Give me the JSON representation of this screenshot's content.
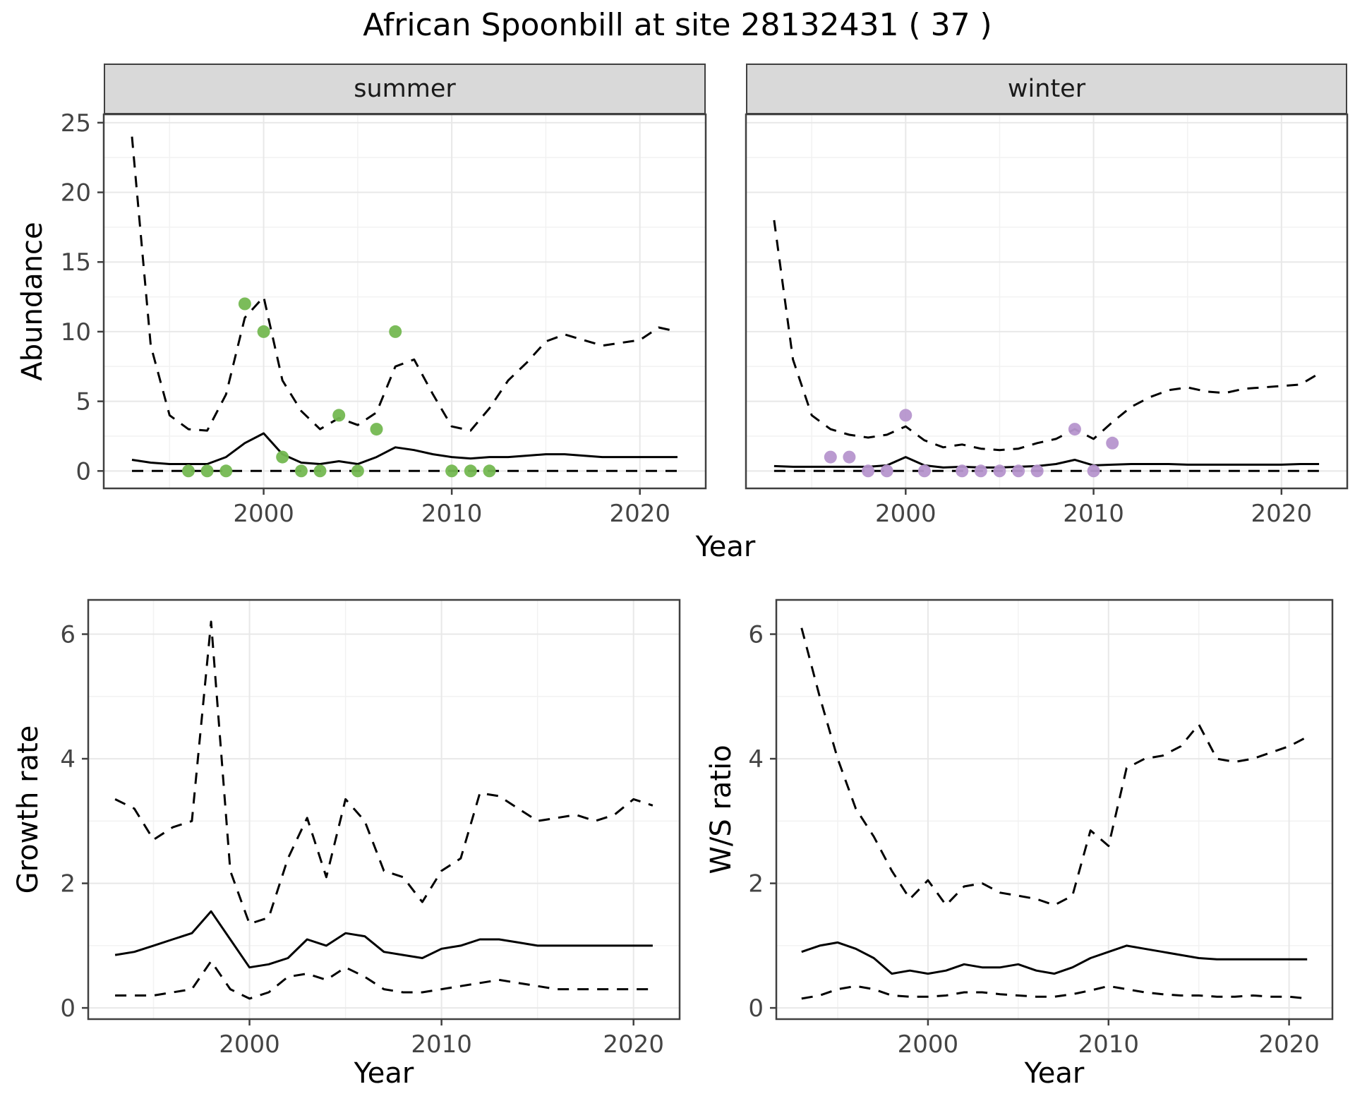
{
  "title": "African Spoonbill at site 28132431 ( 37 )",
  "colors": {
    "summer_points": "#74b851",
    "winter_points": "#b695ce",
    "line": "#000000",
    "grid_major": "#e8e8e8",
    "grid_minor": "#f2f2f2",
    "strip_bg": "#d9d9d9",
    "border": "#404040",
    "tick_text": "#444444"
  },
  "chart_data": [
    {
      "id": "abundance-summer",
      "type": "line",
      "facet": "summer",
      "ylabel": "Abundance",
      "xlabel": "Year",
      "xticks": [
        2000,
        2010,
        2020
      ],
      "yticks": [
        0,
        5,
        10,
        15,
        20,
        25
      ],
      "xdomain": [
        1991.5,
        2023.5
      ],
      "ydomain": [
        -1.25,
        25.6
      ],
      "ylim": [
        0,
        25
      ],
      "x": [
        1993,
        1994,
        1995,
        1996,
        1997,
        1998,
        1999,
        2000,
        2001,
        2002,
        2003,
        2004,
        2005,
        2006,
        2007,
        2008,
        2009,
        2010,
        2011,
        2012,
        2013,
        2014,
        2015,
        2016,
        2017,
        2018,
        2019,
        2020,
        2021,
        2022
      ],
      "series": [
        {
          "name": "upper-ci",
          "style": "dashed",
          "values": [
            24,
            9,
            4,
            3,
            2.9,
            5.5,
            11,
            12.5,
            6.5,
            4.3,
            3,
            3.8,
            3.3,
            4.2,
            7.5,
            8,
            5.5,
            3.2,
            2.9,
            4.5,
            6.5,
            7.8,
            9.3,
            9.8,
            9.4,
            9,
            9.2,
            9.4,
            10.3,
            10
          ]
        },
        {
          "name": "median",
          "style": "solid",
          "values": [
            0.8,
            0.6,
            0.5,
            0.5,
            0.5,
            1.0,
            2.0,
            2.7,
            1.2,
            0.6,
            0.5,
            0.7,
            0.5,
            1.0,
            1.7,
            1.5,
            1.2,
            1.0,
            0.9,
            1.0,
            1.0,
            1.1,
            1.2,
            1.2,
            1.1,
            1.0,
            1.0,
            1.0,
            1.0,
            1.0
          ]
        },
        {
          "name": "lower-ci",
          "style": "dashed",
          "values": [
            0,
            0,
            0,
            0,
            0,
            0,
            0,
            0,
            0,
            0,
            0,
            0,
            0,
            0,
            0,
            0,
            0,
            0,
            0,
            0,
            0,
            0,
            0,
            0,
            0,
            0,
            0,
            0,
            0,
            0
          ]
        }
      ],
      "points": {
        "name": "observed-counts-summer",
        "color": "#74b851",
        "x": [
          1996,
          1997,
          1998,
          1999,
          2000,
          2001,
          2002,
          2003,
          2004,
          2005,
          2006,
          2007,
          2010,
          2011,
          2012
        ],
        "y": [
          0,
          0,
          0,
          12,
          10,
          1,
          0,
          0,
          4,
          0,
          3,
          10,
          0,
          0,
          0
        ]
      }
    },
    {
      "id": "abundance-winter",
      "type": "line",
      "facet": "winter",
      "ylabel": "Abundance",
      "xlabel": "Year",
      "xticks": [
        2000,
        2010,
        2020
      ],
      "yticks": [
        0,
        5,
        10,
        15,
        20,
        25
      ],
      "xdomain": [
        1991.5,
        2023.5
      ],
      "ydomain": [
        -1.25,
        25.6
      ],
      "ylim": [
        0,
        25
      ],
      "x": [
        1993,
        1994,
        1995,
        1996,
        1997,
        1998,
        1999,
        2000,
        2001,
        2002,
        2003,
        2004,
        2005,
        2006,
        2007,
        2008,
        2009,
        2010,
        2011,
        2012,
        2013,
        2014,
        2015,
        2016,
        2017,
        2018,
        2019,
        2020,
        2021,
        2022
      ],
      "series": [
        {
          "name": "upper-ci",
          "style": "dashed",
          "values": [
            18,
            8,
            4,
            3,
            2.6,
            2.4,
            2.6,
            3.2,
            2.2,
            1.7,
            1.9,
            1.6,
            1.5,
            1.6,
            2.0,
            2.3,
            3.0,
            2.3,
            3.5,
            4.6,
            5.3,
            5.8,
            6.0,
            5.7,
            5.6,
            5.9,
            6.0,
            6.1,
            6.2,
            7.0
          ]
        },
        {
          "name": "median",
          "style": "solid",
          "values": [
            0.35,
            0.3,
            0.3,
            0.3,
            0.3,
            0.3,
            0.4,
            1.0,
            0.4,
            0.25,
            0.3,
            0.25,
            0.25,
            0.3,
            0.35,
            0.5,
            0.8,
            0.4,
            0.45,
            0.5,
            0.5,
            0.5,
            0.45,
            0.45,
            0.45,
            0.45,
            0.45,
            0.45,
            0.5,
            0.5
          ]
        },
        {
          "name": "lower-ci",
          "style": "dashed",
          "values": [
            0,
            0,
            0,
            0,
            0,
            0,
            0,
            0,
            0,
            0,
            0,
            0,
            0,
            0,
            0,
            0,
            0,
            0,
            0,
            0,
            0,
            0,
            0,
            0,
            0,
            0,
            0,
            0,
            0,
            0
          ]
        }
      ],
      "points": {
        "name": "observed-counts-winter",
        "color": "#b695ce",
        "x": [
          1996,
          1997,
          1998,
          1999,
          2000,
          2001,
          2003,
          2004,
          2005,
          2006,
          2007,
          2009,
          2010,
          2011
        ],
        "y": [
          1,
          1,
          0,
          0,
          4,
          0,
          0,
          0,
          0,
          0,
          0,
          3,
          0,
          2
        ]
      }
    },
    {
      "id": "growth-rate",
      "type": "line",
      "facet": null,
      "ylabel": "Growth rate",
      "xlabel": "Year",
      "xticks": [
        2000,
        2010,
        2020
      ],
      "yticks": [
        0,
        2,
        4,
        6
      ],
      "xdomain": [
        1991.6,
        2022.4
      ],
      "ydomain": [
        -0.18,
        6.55
      ],
      "ylim": [
        0,
        6
      ],
      "x": [
        1993,
        1994,
        1995,
        1996,
        1997,
        1998,
        1999,
        2000,
        2001,
        2002,
        2003,
        2004,
        2005,
        2006,
        2007,
        2008,
        2009,
        2010,
        2011,
        2012,
        2013,
        2014,
        2015,
        2016,
        2017,
        2018,
        2019,
        2020,
        2021
      ],
      "series": [
        {
          "name": "upper-ci",
          "style": "dashed",
          "values": [
            3.35,
            3.2,
            2.7,
            2.9,
            3.0,
            6.2,
            2.2,
            1.35,
            1.45,
            2.4,
            3.05,
            2.1,
            3.35,
            3.0,
            2.2,
            2.1,
            1.7,
            2.2,
            2.4,
            3.45,
            3.4,
            3.2,
            3.0,
            3.05,
            3.1,
            3.0,
            3.1,
            3.35,
            3.25
          ]
        },
        {
          "name": "median",
          "style": "solid",
          "values": [
            0.85,
            0.9,
            1.0,
            1.1,
            1.2,
            1.55,
            1.1,
            0.65,
            0.7,
            0.8,
            1.1,
            1.0,
            1.2,
            1.15,
            0.9,
            0.85,
            0.8,
            0.95,
            1.0,
            1.1,
            1.1,
            1.05,
            1.0,
            1.0,
            1.0,
            1.0,
            1.0,
            1.0,
            1.0
          ]
        },
        {
          "name": "lower-ci",
          "style": "dashed",
          "values": [
            0.2,
            0.2,
            0.2,
            0.25,
            0.3,
            0.75,
            0.3,
            0.15,
            0.25,
            0.5,
            0.55,
            0.45,
            0.65,
            0.5,
            0.3,
            0.25,
            0.25,
            0.3,
            0.35,
            0.4,
            0.45,
            0.4,
            0.35,
            0.3,
            0.3,
            0.3,
            0.3,
            0.3,
            0.3
          ]
        }
      ],
      "points": null
    },
    {
      "id": "ws-ratio",
      "type": "line",
      "facet": null,
      "ylabel": "W/S ratio",
      "xlabel": "Year",
      "xticks": [
        2000,
        2010,
        2020
      ],
      "yticks": [
        0,
        2,
        4,
        6
      ],
      "xdomain": [
        1991.6,
        2022.4
      ],
      "ydomain": [
        -0.18,
        6.55
      ],
      "ylim": [
        0,
        6
      ],
      "x": [
        1993,
        1994,
        1995,
        1996,
        1997,
        1998,
        1999,
        2000,
        2001,
        2002,
        2003,
        2004,
        2005,
        2006,
        2007,
        2008,
        2009,
        2010,
        2011,
        2012,
        2013,
        2014,
        2015,
        2016,
        2017,
        2018,
        2019,
        2020,
        2021
      ],
      "series": [
        {
          "name": "upper-ci",
          "style": "dashed",
          "values": [
            6.1,
            5.0,
            4.0,
            3.2,
            2.75,
            2.2,
            1.75,
            2.05,
            1.65,
            1.95,
            2.0,
            1.85,
            1.8,
            1.75,
            1.65,
            1.8,
            2.85,
            2.6,
            3.85,
            4.0,
            4.05,
            4.2,
            4.55,
            4.0,
            3.95,
            4.0,
            4.1,
            4.2,
            4.35
          ]
        },
        {
          "name": "median",
          "style": "solid",
          "values": [
            0.9,
            1.0,
            1.05,
            0.95,
            0.8,
            0.55,
            0.6,
            0.55,
            0.6,
            0.7,
            0.65,
            0.65,
            0.7,
            0.6,
            0.55,
            0.65,
            0.8,
            0.9,
            1.0,
            0.95,
            0.9,
            0.85,
            0.8,
            0.78,
            0.78,
            0.78,
            0.78,
            0.78,
            0.78
          ]
        },
        {
          "name": "lower-ci",
          "style": "dashed",
          "values": [
            0.15,
            0.2,
            0.3,
            0.35,
            0.3,
            0.2,
            0.18,
            0.18,
            0.2,
            0.25,
            0.25,
            0.22,
            0.2,
            0.18,
            0.18,
            0.22,
            0.28,
            0.35,
            0.3,
            0.25,
            0.22,
            0.2,
            0.2,
            0.18,
            0.18,
            0.2,
            0.18,
            0.18,
            0.15
          ]
        }
      ],
      "points": null
    }
  ]
}
